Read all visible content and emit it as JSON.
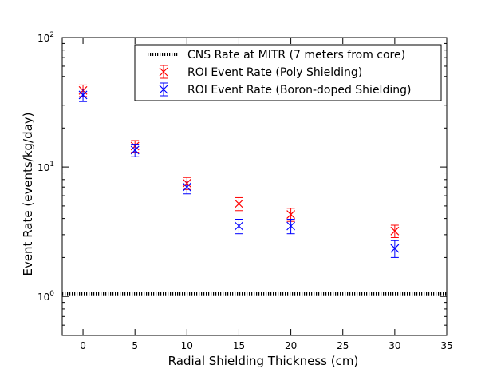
{
  "chart_data": {
    "type": "scatter",
    "title": "",
    "xlabel": "Radial Shielding Thickness (cm)",
    "ylabel": "Event Rate (events/kg/day)",
    "xlim": [
      -2,
      35
    ],
    "ylim": [
      0.5,
      100
    ],
    "yscale": "log",
    "grid": false,
    "legend_location": "top-right",
    "x_ticks": [
      0,
      5,
      10,
      15,
      20,
      25,
      30,
      35
    ],
    "x_tick_labels": [
      "0",
      "5",
      "10",
      "15",
      "20",
      "25",
      "30",
      "35"
    ],
    "y_ticks": [
      1,
      10,
      100
    ],
    "y_tick_labels": [
      {
        "base": "10",
        "exp": "0"
      },
      {
        "base": "10",
        "exp": "1"
      },
      {
        "base": "10",
        "exp": "2"
      }
    ],
    "reference_line": {
      "name": "CNS Rate at MITR (7 meters from core)",
      "y": 1.05,
      "color": "#000000",
      "style": "dotted"
    },
    "series": [
      {
        "name": "ROI Event Rate (Poly Shielding)",
        "color": "#ff0000",
        "marker": "x",
        "points": [
          {
            "x": 0,
            "y": 39,
            "err_low": 4,
            "err_high": 4
          },
          {
            "x": 5,
            "y": 14.5,
            "err_low": 1.5,
            "err_high": 1.5
          },
          {
            "x": 10,
            "y": 7.5,
            "err_low": 0.8,
            "err_high": 0.8
          },
          {
            "x": 15,
            "y": 5.2,
            "err_low": 0.6,
            "err_high": 0.6
          },
          {
            "x": 20,
            "y": 4.3,
            "err_low": 0.5,
            "err_high": 0.5
          },
          {
            "x": 30,
            "y": 3.2,
            "err_low": 0.35,
            "err_high": 0.35
          }
        ]
      },
      {
        "name": "ROI Event Rate (Boron-doped Shielding)",
        "color": "#0000ff",
        "marker": "x",
        "points": [
          {
            "x": 0,
            "y": 36,
            "err_low": 4,
            "err_high": 4
          },
          {
            "x": 5,
            "y": 13.5,
            "err_low": 1.5,
            "err_high": 1.5
          },
          {
            "x": 10,
            "y": 7.0,
            "err_low": 0.8,
            "err_high": 0.8
          },
          {
            "x": 15,
            "y": 3.5,
            "err_low": 0.45,
            "err_high": 0.45
          },
          {
            "x": 20,
            "y": 3.5,
            "err_low": 0.45,
            "err_high": 0.45
          },
          {
            "x": 30,
            "y": 2.35,
            "err_low": 0.35,
            "err_high": 0.35
          }
        ]
      }
    ]
  }
}
